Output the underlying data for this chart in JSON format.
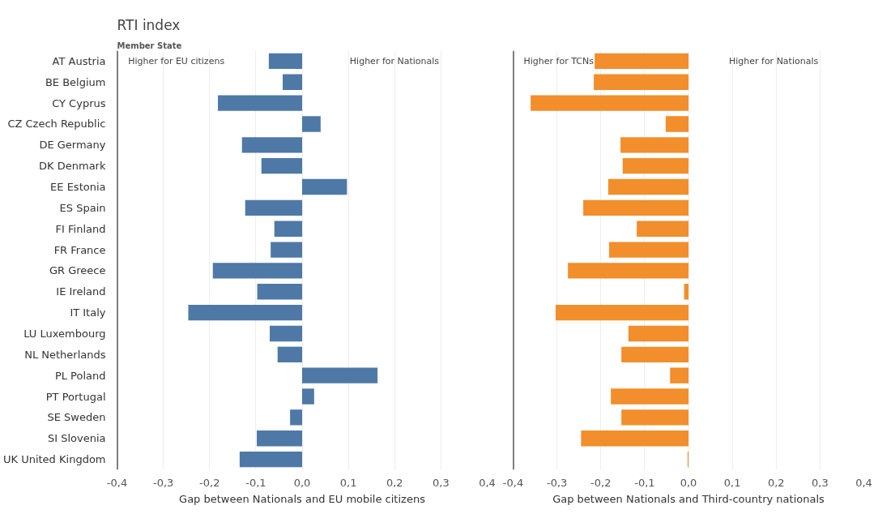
{
  "chart_data": [
    {
      "type": "bar",
      "orientation": "horizontal",
      "title": "RTI index",
      "ylabel": "Member State",
      "xlabel": "Gap between Nationals and EU mobile citizens",
      "categories": [
        "AT Austria",
        "BE Belgium",
        "CY Cyprus",
        "CZ Czech Republic",
        "DE Germany",
        "DK Denmark",
        "EE Estonia",
        "ES Spain",
        "FI Finland",
        "FR France",
        "GR Greece",
        "IE Ireland",
        "IT Italy",
        "LU Luxembourg",
        "NL Netherlands",
        "PL Poland",
        "PT Portugal",
        "SE Sweden",
        "SI Slovenia",
        "UK United Kingdom"
      ],
      "values": [
        -0.072,
        -0.042,
        -0.182,
        0.04,
        -0.13,
        -0.088,
        0.097,
        -0.123,
        -0.06,
        -0.068,
        -0.193,
        -0.097,
        -0.246,
        -0.07,
        -0.053,
        0.163,
        0.026,
        -0.026,
        -0.098,
        -0.135
      ],
      "color": "#4e79a7",
      "xlim": [
        -0.4,
        0.4
      ],
      "xticks": [
        {
          "value": -0.4,
          "label": "-0,4"
        },
        {
          "value": -0.3,
          "label": "-0,3"
        },
        {
          "value": -0.2,
          "label": "-0,2"
        },
        {
          "value": -0.1,
          "label": "-0,1"
        },
        {
          "value": 0,
          "label": "0,0"
        },
        {
          "value": 0.1,
          "label": "0,1"
        },
        {
          "value": 0.2,
          "label": "0,2"
        },
        {
          "value": 0.3,
          "label": "0,3"
        },
        {
          "value": 0.4,
          "label": "0,4"
        }
      ],
      "grid": "x",
      "annotations": [
        "Higher for EU citizens",
        "Higher for Nationals"
      ]
    },
    {
      "type": "bar",
      "orientation": "horizontal",
      "xlabel": "Gap between Nationals and Third-country nationals",
      "tick_labels": "x",
      "categories": [
        null,
        null,
        null,
        null,
        null,
        null,
        null,
        null,
        null,
        null,
        null,
        null,
        null,
        null,
        null,
        null,
        null,
        null,
        null,
        null
      ],
      "values": [
        -0.214,
        -0.216,
        -0.36,
        -0.052,
        -0.155,
        -0.15,
        -0.183,
        -0.24,
        -0.118,
        -0.181,
        -0.275,
        -0.01,
        -0.303,
        -0.137,
        -0.153,
        -0.042,
        -0.177,
        -0.153,
        -0.245,
        -0.002
      ],
      "color": "#f28e2b",
      "xlim": [
        -0.4,
        0.4
      ],
      "xticks": [
        {
          "value": -0.4,
          "label": "-0,4"
        },
        {
          "value": -0.3,
          "label": "-0,3"
        },
        {
          "value": -0.2,
          "label": "-0,2"
        },
        {
          "value": -0.1,
          "label": "-0,1"
        },
        {
          "value": 0,
          "label": "0,0"
        },
        {
          "value": 0.1,
          "label": "0,1"
        },
        {
          "value": 0.2,
          "label": "0,2"
        },
        {
          "value": 0.3,
          "label": "0,3"
        },
        {
          "value": 0.4,
          "label": "0,4"
        }
      ],
      "grid": "x",
      "annotations": [
        "Higher for TCNs",
        "Higher for Nationals"
      ]
    }
  ]
}
